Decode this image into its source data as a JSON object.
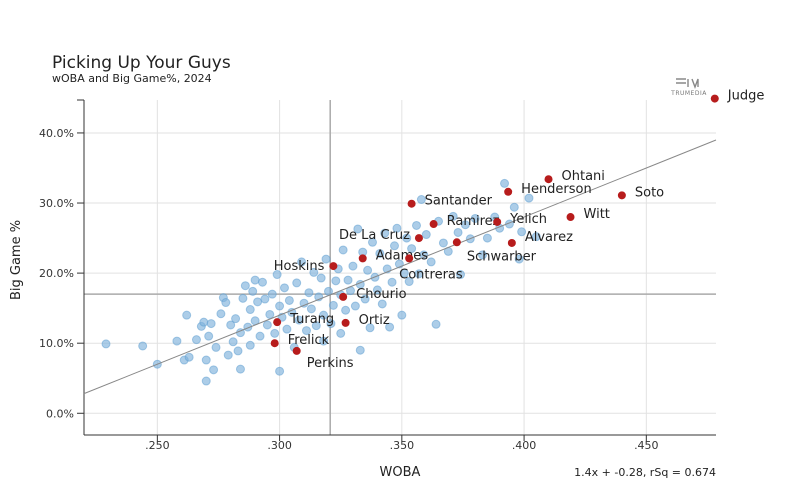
{
  "chart_data": {
    "type": "scatter",
    "title": "Picking Up Your Guys",
    "subtitle": "wOBA and Big Game%, 2024",
    "xlabel": "WOBA",
    "ylabel": "Big Game %",
    "xlim": [
      0.22,
      0.4785
    ],
    "ylim": [
      -3.1,
      44.7
    ],
    "x_ticks": [
      0.25,
      0.3,
      0.35,
      0.4,
      0.45
    ],
    "x_tick_labels": [
      ".250",
      ".300",
      ".350",
      ".400",
      ".450"
    ],
    "y_ticks": [
      0,
      10,
      20,
      30,
      40
    ],
    "y_tick_labels": [
      "0.0%",
      "10.0%",
      "20.0%",
      "30.0%",
      "40.0%"
    ],
    "grid": true,
    "reference_lines": {
      "x_mean": 0.3207,
      "y_mean": 17.0
    },
    "trendline": {
      "slope": 1.4,
      "intercept": -0.28,
      "label": "1.4x + -0.28, rSq = 0.674"
    },
    "logo_text": "TRUMEDIA",
    "colors": {
      "highlight": "#b71c1c",
      "other": "#7fb2db",
      "other_stroke": "#5a9bcf"
    },
    "highlighted": [
      {
        "name": "Judge",
        "x": 0.478,
        "y": 44.9
      },
      {
        "name": "Ohtani",
        "x": 0.41,
        "y": 33.4
      },
      {
        "name": "Henderson",
        "x": 0.3935,
        "y": 31.6
      },
      {
        "name": "Soto",
        "x": 0.44,
        "y": 31.1
      },
      {
        "name": "Santander",
        "x": 0.354,
        "y": 29.9
      },
      {
        "name": "Witt",
        "x": 0.419,
        "y": 28.0
      },
      {
        "name": "Ramirez",
        "x": 0.363,
        "y": 27.0
      },
      {
        "name": "Yelich",
        "x": 0.389,
        "y": 27.3
      },
      {
        "name": "De La Cruz",
        "x": 0.357,
        "y": 25.0
      },
      {
        "name": "Schwarber",
        "x": 0.3725,
        "y": 24.4
      },
      {
        "name": "Alvarez",
        "x": 0.395,
        "y": 24.3
      },
      {
        "name": "Adames",
        "x": 0.334,
        "y": 22.1
      },
      {
        "name": "Contreras",
        "x": 0.353,
        "y": 22.1
      },
      {
        "name": "Hoskins",
        "x": 0.322,
        "y": 21.0
      },
      {
        "name": "Chourio",
        "x": 0.326,
        "y": 16.6
      },
      {
        "name": "Turang",
        "x": 0.299,
        "y": 13.0
      },
      {
        "name": "Ortiz",
        "x": 0.327,
        "y": 12.9
      },
      {
        "name": "Frelick",
        "x": 0.298,
        "y": 10.0
      },
      {
        "name": "Perkins",
        "x": 0.307,
        "y": 8.9
      }
    ],
    "others": [
      [
        0.229,
        9.9
      ],
      [
        0.244,
        9.6
      ],
      [
        0.25,
        7.0
      ],
      [
        0.258,
        10.3
      ],
      [
        0.261,
        7.6
      ],
      [
        0.262,
        14.0
      ],
      [
        0.263,
        8.0
      ],
      [
        0.266,
        10.5
      ],
      [
        0.268,
        12.4
      ],
      [
        0.269,
        13.0
      ],
      [
        0.27,
        4.6
      ],
      [
        0.27,
        7.6
      ],
      [
        0.271,
        11.0
      ],
      [
        0.272,
        12.8
      ],
      [
        0.273,
        6.2
      ],
      [
        0.274,
        9.4
      ],
      [
        0.276,
        14.2
      ],
      [
        0.277,
        16.5
      ],
      [
        0.278,
        15.8
      ],
      [
        0.279,
        8.3
      ],
      [
        0.28,
        12.6
      ],
      [
        0.281,
        10.2
      ],
      [
        0.282,
        13.5
      ],
      [
        0.283,
        8.9
      ],
      [
        0.284,
        6.3
      ],
      [
        0.284,
        11.5
      ],
      [
        0.285,
        16.4
      ],
      [
        0.286,
        18.2
      ],
      [
        0.287,
        12.3
      ],
      [
        0.288,
        14.8
      ],
      [
        0.288,
        9.7
      ],
      [
        0.289,
        17.4
      ],
      [
        0.29,
        19.0
      ],
      [
        0.29,
        13.2
      ],
      [
        0.291,
        15.9
      ],
      [
        0.292,
        11.0
      ],
      [
        0.293,
        18.7
      ],
      [
        0.294,
        16.3
      ],
      [
        0.295,
        12.6
      ],
      [
        0.296,
        14.1
      ],
      [
        0.297,
        17.0
      ],
      [
        0.298,
        11.4
      ],
      [
        0.299,
        19.8
      ],
      [
        0.3,
        6.0
      ],
      [
        0.3,
        15.3
      ],
      [
        0.301,
        13.7
      ],
      [
        0.302,
        17.9
      ],
      [
        0.303,
        12.0
      ],
      [
        0.304,
        16.1
      ],
      [
        0.305,
        14.4
      ],
      [
        0.306,
        9.4
      ],
      [
        0.307,
        18.6
      ],
      [
        0.308,
        13.3
      ],
      [
        0.309,
        21.6
      ],
      [
        0.31,
        15.7
      ],
      [
        0.311,
        11.8
      ],
      [
        0.312,
        17.2
      ],
      [
        0.313,
        14.9
      ],
      [
        0.314,
        20.1
      ],
      [
        0.315,
        12.5
      ],
      [
        0.316,
        16.6
      ],
      [
        0.317,
        19.3
      ],
      [
        0.318,
        10.3
      ],
      [
        0.318,
        14.0
      ],
      [
        0.319,
        22.0
      ],
      [
        0.32,
        17.4
      ],
      [
        0.321,
        12.8
      ],
      [
        0.322,
        15.4
      ],
      [
        0.323,
        18.9
      ],
      [
        0.324,
        20.6
      ],
      [
        0.325,
        11.4
      ],
      [
        0.325,
        16.9
      ],
      [
        0.326,
        23.3
      ],
      [
        0.327,
        14.7
      ],
      [
        0.328,
        19.0
      ],
      [
        0.329,
        17.5
      ],
      [
        0.33,
        21.0
      ],
      [
        0.331,
        15.3
      ],
      [
        0.332,
        26.3
      ],
      [
        0.333,
        9.0
      ],
      [
        0.333,
        18.4
      ],
      [
        0.334,
        23.0
      ],
      [
        0.335,
        16.3
      ],
      [
        0.336,
        20.4
      ],
      [
        0.337,
        12.2
      ],
      [
        0.338,
        24.4
      ],
      [
        0.339,
        19.4
      ],
      [
        0.34,
        17.6
      ],
      [
        0.341,
        22.8
      ],
      [
        0.342,
        15.6
      ],
      [
        0.343,
        25.7
      ],
      [
        0.344,
        20.6
      ],
      [
        0.345,
        12.3
      ],
      [
        0.346,
        18.7
      ],
      [
        0.347,
        23.9
      ],
      [
        0.348,
        26.4
      ],
      [
        0.349,
        21.3
      ],
      [
        0.35,
        14.0
      ],
      [
        0.351,
        20.0
      ],
      [
        0.352,
        25.0
      ],
      [
        0.353,
        18.8
      ],
      [
        0.354,
        23.5
      ],
      [
        0.356,
        26.8
      ],
      [
        0.357,
        19.9
      ],
      [
        0.358,
        30.5
      ],
      [
        0.359,
        22.6
      ],
      [
        0.36,
        25.5
      ],
      [
        0.362,
        21.6
      ],
      [
        0.364,
        12.7
      ],
      [
        0.365,
        27.4
      ],
      [
        0.367,
        24.3
      ],
      [
        0.369,
        23.1
      ],
      [
        0.371,
        28.1
      ],
      [
        0.373,
        25.8
      ],
      [
        0.374,
        19.8
      ],
      [
        0.376,
        26.9
      ],
      [
        0.378,
        24.9
      ],
      [
        0.38,
        27.8
      ],
      [
        0.383,
        22.6
      ],
      [
        0.385,
        25.0
      ],
      [
        0.388,
        28.0
      ],
      [
        0.39,
        26.4
      ],
      [
        0.392,
        32.8
      ],
      [
        0.394,
        27.0
      ],
      [
        0.396,
        29.4
      ],
      [
        0.398,
        22.0
      ],
      [
        0.399,
        25.9
      ],
      [
        0.402,
        30.7
      ],
      [
        0.405,
        25.2
      ]
    ]
  }
}
